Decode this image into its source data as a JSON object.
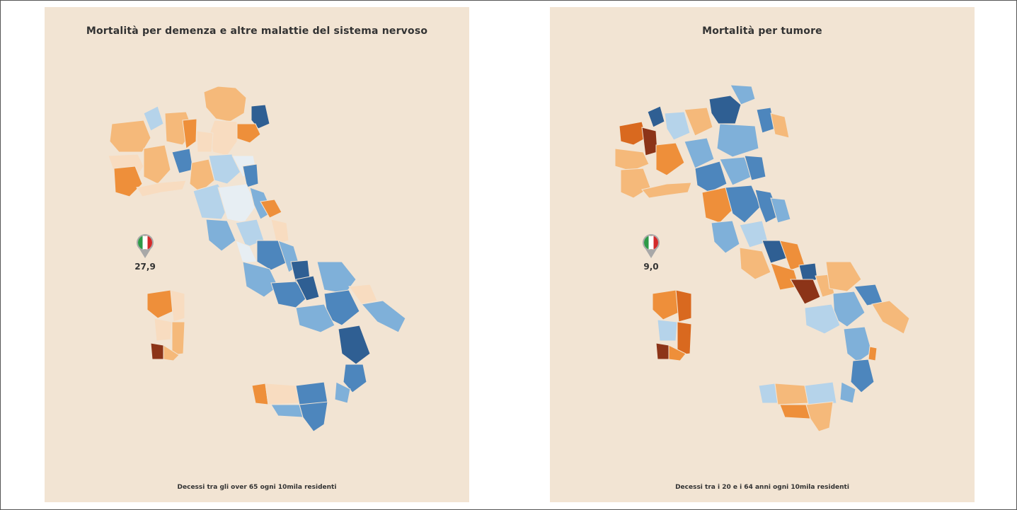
{
  "maps": [
    {
      "id": "left",
      "title": "Mortalità per demenza e altre malattie del sistema nervoso",
      "national_value": "27,9",
      "footer": "Decessi tra gli over 65 ogni 10mila residenti"
    },
    {
      "id": "right",
      "title": "Mortalità per tumore",
      "national_value": "9,0",
      "footer": "Decessi tra i 20 e i 64 anni ogni 10mila residenti"
    }
  ],
  "colors": {
    "panel_bg": "#f2e4d3",
    "scale": [
      "#2f5f93",
      "#4d86bd",
      "#7fb0d9",
      "#b5d3ea",
      "#e7eef3",
      "#f8dcc0",
      "#f5b97a",
      "#ee8f3a",
      "#d9691f",
      "#8c3418"
    ],
    "flag_green": "#2e9a47",
    "flag_white": "#ffffff",
    "flag_red": "#d32a2a",
    "pin_gray": "#a8a8a8"
  }
}
